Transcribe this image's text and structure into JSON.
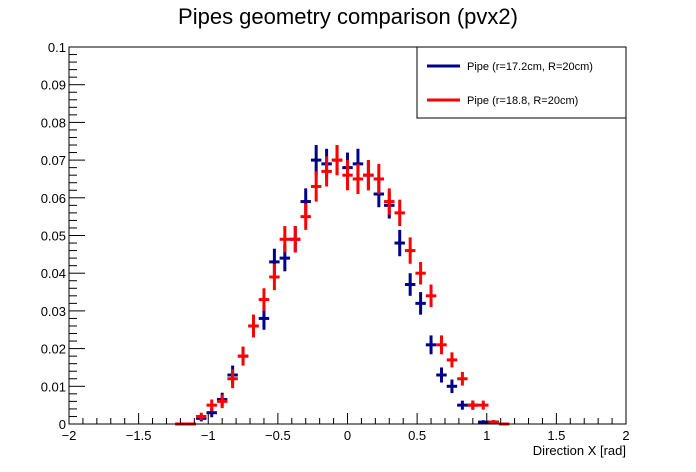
{
  "chart_data": {
    "type": "scatter",
    "title": "Pipes geometry comparison (pvx2)",
    "xlabel": "Direction X [rad]",
    "ylabel": "",
    "xlim": [
      -2,
      2
    ],
    "ylim": [
      0,
      0.1
    ],
    "x_ticks": [
      "−2",
      "−1.5",
      "−1",
      "−0.5",
      "0",
      "0.5",
      "1",
      "1.5",
      "2"
    ],
    "y_ticks": [
      "0",
      "0.01",
      "0.02",
      "0.03",
      "0.04",
      "0.05",
      "0.06",
      "0.07",
      "0.08",
      "0.09",
      "0.1"
    ],
    "grid": false,
    "legend_position": "top-right",
    "bin_half_width": 0.0375,
    "series": [
      {
        "name": "Pipe (r=17.2cm, R=20cm)",
        "color": "#00008b",
        "x": [
          -1.05,
          -0.975,
          -0.9,
          -0.825,
          -0.75,
          -0.675,
          -0.6,
          -0.525,
          -0.45,
          -0.375,
          -0.3,
          -0.225,
          -0.15,
          -0.075,
          0.0,
          0.075,
          0.15,
          0.225,
          0.3,
          0.375,
          0.45,
          0.525,
          0.6,
          0.675,
          0.75,
          0.825,
          0.9,
          0.975,
          1.05
        ],
        "y": [
          0.0015,
          0.003,
          0.0065,
          0.013,
          0.018,
          0.026,
          0.028,
          0.043,
          0.044,
          0.049,
          0.059,
          0.07,
          0.069,
          0.07,
          0.068,
          0.069,
          0.066,
          0.061,
          0.058,
          0.048,
          0.037,
          0.032,
          0.021,
          0.013,
          0.01,
          0.005,
          0.005,
          0.0005,
          0.0005
        ],
        "err": [
          0.0008,
          0.0012,
          0.0018,
          0.0025,
          0.0025,
          0.003,
          0.003,
          0.0035,
          0.0035,
          0.0035,
          0.0035,
          0.004,
          0.004,
          0.004,
          0.004,
          0.004,
          0.004,
          0.0035,
          0.0035,
          0.0035,
          0.003,
          0.003,
          0.0025,
          0.002,
          0.0018,
          0.0012,
          0.0012,
          0.0005,
          0.0005
        ]
      },
      {
        "name": "Pipe (r=18.8, R=20cm)",
        "color": "#ff0000",
        "x": [
          -1.2,
          -1.125,
          -1.05,
          -0.975,
          -0.9,
          -0.825,
          -0.75,
          -0.675,
          -0.6,
          -0.525,
          -0.45,
          -0.375,
          -0.3,
          -0.225,
          -0.15,
          -0.075,
          0.0,
          0.075,
          0.15,
          0.225,
          0.3,
          0.375,
          0.45,
          0.525,
          0.6,
          0.675,
          0.75,
          0.825,
          0.9,
          0.975,
          1.05,
          1.125
        ],
        "y": [
          0.0,
          0.0,
          0.002,
          0.005,
          0.006,
          0.012,
          0.018,
          0.026,
          0.033,
          0.039,
          0.049,
          0.049,
          0.055,
          0.063,
          0.067,
          0.07,
          0.066,
          0.065,
          0.066,
          0.065,
          0.059,
          0.056,
          0.046,
          0.04,
          0.034,
          0.021,
          0.017,
          0.012,
          0.005,
          0.005,
          0.0005,
          0.0
        ],
        "err": [
          0.0,
          0.0,
          0.001,
          0.0015,
          0.0018,
          0.0025,
          0.0025,
          0.003,
          0.003,
          0.0035,
          0.0035,
          0.0035,
          0.0035,
          0.004,
          0.004,
          0.004,
          0.004,
          0.004,
          0.004,
          0.004,
          0.0035,
          0.0035,
          0.0035,
          0.003,
          0.003,
          0.0025,
          0.002,
          0.0018,
          0.0012,
          0.0012,
          0.0005,
          0.0
        ]
      }
    ]
  }
}
